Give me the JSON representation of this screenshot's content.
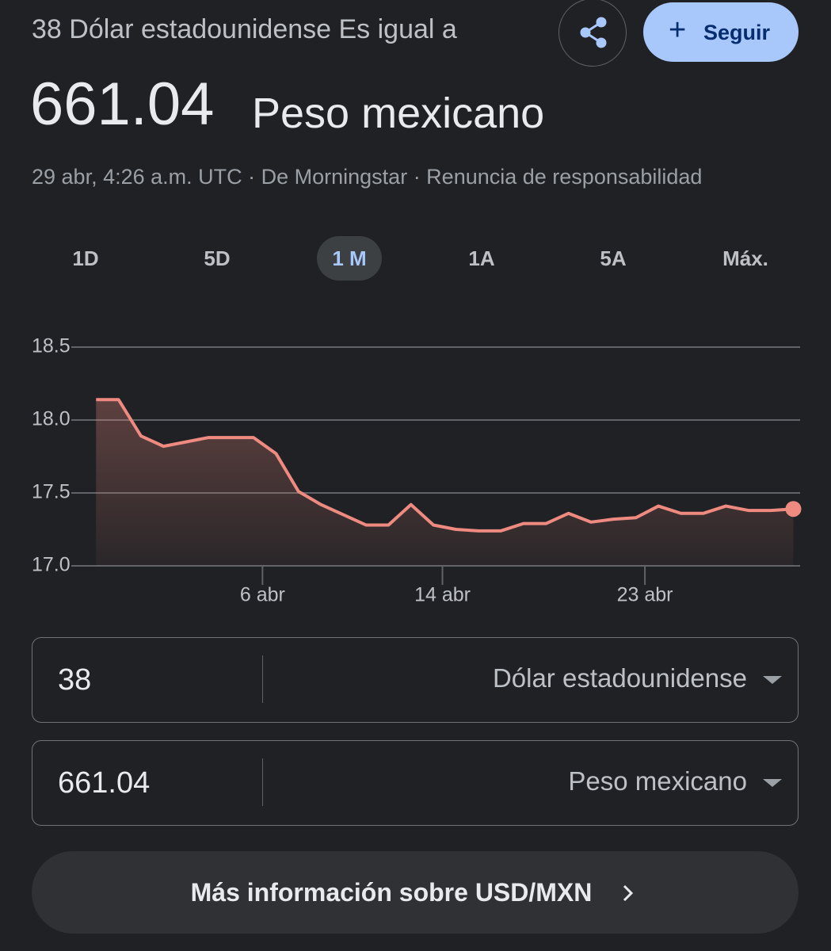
{
  "header": {
    "title": "38 Dólar estadounidense Es igual a",
    "result_value": "661.04",
    "result_currency": "Peso mexicano",
    "meta": "29 abr, 4:26 a.m. UTC · De Morningstar · Renuncia de responsabilidad",
    "follow_button": "Seguir"
  },
  "tabs": {
    "labels": [
      "1D",
      "5D",
      "1 M",
      "1A",
      "5A",
      "Máx."
    ],
    "selected": 2
  },
  "chart_data": {
    "type": "line",
    "x": [
      -1.4,
      -0.4,
      0.6,
      1.6,
      2.6,
      3.6,
      4.6,
      5.6,
      6.6,
      7.6,
      8.6,
      9.6,
      10.6,
      11.6,
      12.6,
      13.6,
      14.6,
      15.6,
      16.6,
      17.6,
      18.6,
      19.6,
      20.6,
      21.6,
      22.6,
      23.6,
      24.6,
      25.6,
      26.6,
      27.6,
      28.6,
      29.6
    ],
    "series": [
      {
        "color": "#ee8a80",
        "values": [
          18.14,
          18.14,
          17.89,
          17.82,
          17.85,
          17.88,
          17.88,
          17.88,
          17.77,
          17.51,
          17.42,
          17.35,
          17.28,
          17.28,
          17.42,
          17.28,
          17.25,
          17.24,
          17.24,
          17.29,
          17.29,
          17.36,
          17.3,
          17.32,
          17.33,
          17.41,
          17.36,
          17.36,
          17.41,
          17.38,
          17.38,
          17.39
        ]
      }
    ],
    "xlim": [
      -2.5,
      29.9
    ],
    "xticks": [
      {
        "value": 6,
        "label": "6 abr"
      },
      {
        "value": 14,
        "label": "14 abr"
      },
      {
        "value": 23,
        "label": "23 abr"
      }
    ],
    "ylim": [
      17.0,
      18.5
    ],
    "yticks": [
      {
        "value": 17.0,
        "label": "17.0"
      },
      {
        "value": 17.5,
        "label": "17.5"
      },
      {
        "value": 18.0,
        "label": "18.0"
      },
      {
        "value": 18.5,
        "label": "18.5"
      }
    ],
    "grid": true
  },
  "converter": {
    "from": {
      "amount": "38",
      "currency": "Dólar estadounidense"
    },
    "to": {
      "amount": "661.04",
      "currency": "Peso mexicano"
    }
  },
  "more_button": "Más información sobre USD/MXN"
}
